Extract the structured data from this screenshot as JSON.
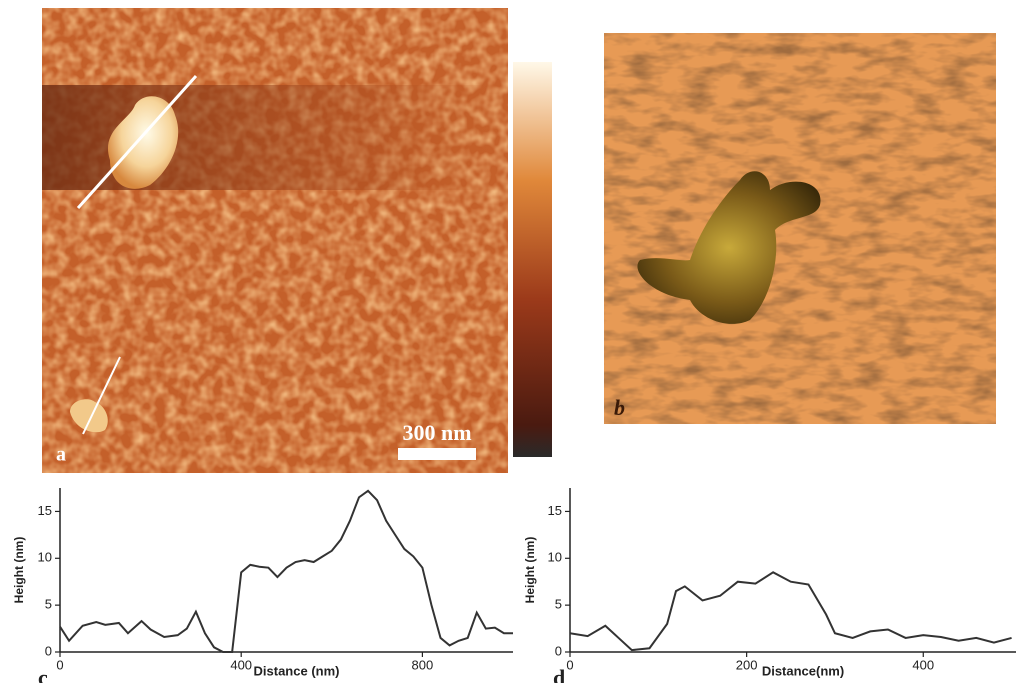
{
  "panels": {
    "a": {
      "label": "a",
      "scale_bar": "300 nm"
    },
    "b": {
      "label": "b"
    }
  },
  "chart_data": [
    {
      "type": "line",
      "label": "c",
      "xlabel": "Distance (nm)",
      "ylabel": "Height (nm)",
      "color": "#333333",
      "x": [
        0,
        20,
        50,
        80,
        100,
        130,
        150,
        180,
        200,
        230,
        260,
        280,
        300,
        320,
        340,
        360,
        380,
        400,
        420,
        440,
        460,
        480,
        500,
        520,
        540,
        560,
        580,
        600,
        620,
        640,
        660,
        680,
        700,
        720,
        740,
        760,
        780,
        800,
        820,
        840,
        860,
        880,
        900,
        920,
        940,
        960,
        980,
        1000
      ],
      "series": [
        {
          "name": "Height",
          "color": "#333333",
          "values": [
            2.7,
            1.2,
            2.8,
            3.2,
            2.9,
            3.1,
            2,
            3.3,
            2.4,
            1.6,
            1.8,
            2.5,
            4.3,
            2,
            0.5,
            0,
            0,
            8.5,
            9.3,
            9.1,
            9,
            8,
            9,
            9.6,
            9.8,
            9.6,
            10.2,
            10.8,
            12,
            14,
            16.5,
            17.2,
            16.2,
            14,
            12.5,
            11,
            10.2,
            9,
            5,
            1.5,
            0.7,
            1.2,
            1.5,
            4.2,
            2.5,
            2.6,
            2,
            2
          ]
        }
      ],
      "xlim": [
        0,
        1000
      ],
      "xticks": [
        0,
        400,
        800
      ],
      "ylim": [
        0,
        17.5
      ],
      "yticks": [
        0,
        5,
        10,
        15
      ]
    },
    {
      "type": "line",
      "label": "d",
      "xlabel": "Distance(nm)",
      "ylabel": "Height (nm)",
      "color": "#333333",
      "x": [
        0,
        20,
        40,
        55,
        70,
        90,
        110,
        120,
        130,
        150,
        170,
        190,
        210,
        230,
        250,
        270,
        290,
        300,
        320,
        340,
        360,
        380,
        400,
        420,
        440,
        460,
        480,
        500
      ],
      "series": [
        {
          "name": "Height",
          "color": "#333333",
          "values": [
            2,
            1.7,
            2.8,
            1.5,
            0.2,
            0.4,
            3,
            6.5,
            7,
            5.5,
            6,
            7.5,
            7.3,
            8.5,
            7.5,
            7.2,
            4,
            2,
            1.5,
            2.2,
            2.4,
            1.5,
            1.8,
            1.6,
            1.2,
            1.5,
            1,
            1.5
          ]
        }
      ],
      "xlim": [
        0,
        505
      ],
      "xticks": [
        0,
        200,
        400
      ],
      "ylim": [
        0,
        17.5
      ],
      "yticks": [
        0,
        5,
        10,
        15
      ]
    }
  ]
}
